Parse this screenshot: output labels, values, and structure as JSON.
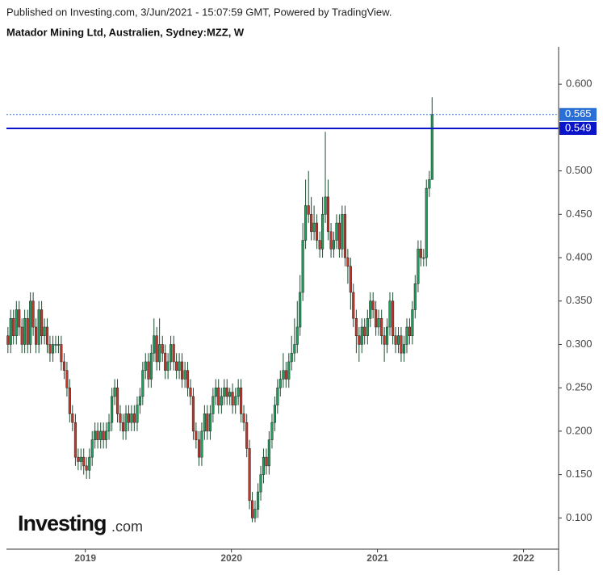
{
  "header": "Published on Investing.com, 3/Jun/2021 - 15:07:59 GMT, Powered by TradingView.",
  "watermark": {
    "brand": "Investing",
    "suffix": ".com"
  },
  "chart_data": {
    "type": "candlestick",
    "title": "Matador Mining Ltd, Australien, Sydney:MZZ, W",
    "up_color": "#1f9e5c",
    "down_color": "#c0392b",
    "xlim": [
      2018.46,
      2022.24
    ],
    "xticks": [
      2019,
      2020,
      2021,
      2022
    ],
    "ylim": [
      0.064,
      0.643
    ],
    "yticks": [
      {
        "value": 0.1,
        "label": "0.100"
      },
      {
        "value": 0.15,
        "label": "0.150"
      },
      {
        "value": 0.2,
        "label": "0.200"
      },
      {
        "value": 0.25,
        "label": "0.250"
      },
      {
        "value": 0.3,
        "label": "0.300"
      },
      {
        "value": 0.35,
        "label": "0.350"
      },
      {
        "value": 0.4,
        "label": "0.400"
      },
      {
        "value": 0.45,
        "label": "0.450"
      },
      {
        "value": 0.5,
        "label": "0.500"
      },
      {
        "value": 0.55,
        "label": "0.550"
      },
      {
        "value": 0.6,
        "label": "0.600"
      }
    ],
    "price_lines": [
      {
        "value": 0.565,
        "color": "#2a6fd6",
        "style": "dotted"
      },
      {
        "value": 0.549,
        "color": "#0a14c8",
        "style": "solid"
      }
    ],
    "x": [
      2018.47,
      2018.489,
      2018.508,
      2018.528,
      2018.547,
      2018.566,
      2018.585,
      2018.605,
      2018.624,
      2018.643,
      2018.662,
      2018.682,
      2018.701,
      2018.72,
      2018.739,
      2018.758,
      2018.778,
      2018.797,
      2018.816,
      2018.835,
      2018.855,
      2018.874,
      2018.893,
      2018.912,
      2018.932,
      2018.951,
      2018.97,
      2018.989,
      2019.008,
      2019.028,
      2019.047,
      2019.066,
      2019.085,
      2019.105,
      2019.124,
      2019.143,
      2019.162,
      2019.182,
      2019.201,
      2019.22,
      2019.239,
      2019.258,
      2019.278,
      2019.297,
      2019.316,
      2019.335,
      2019.355,
      2019.374,
      2019.393,
      2019.412,
      2019.432,
      2019.451,
      2019.47,
      2019.489,
      2019.508,
      2019.528,
      2019.547,
      2019.566,
      2019.585,
      2019.605,
      2019.624,
      2019.643,
      2019.662,
      2019.682,
      2019.701,
      2019.72,
      2019.739,
      2019.758,
      2019.778,
      2019.797,
      2019.816,
      2019.835,
      2019.855,
      2019.874,
      2019.893,
      2019.912,
      2019.932,
      2019.951,
      2019.97,
      2019.989,
      2020.008,
      2020.028,
      2020.047,
      2020.066,
      2020.085,
      2020.105,
      2020.124,
      2020.143,
      2020.162,
      2020.182,
      2020.201,
      2020.22,
      2020.239,
      2020.258,
      2020.278,
      2020.297,
      2020.316,
      2020.335,
      2020.355,
      2020.374,
      2020.393,
      2020.412,
      2020.432,
      2020.451,
      2020.47,
      2020.489,
      2020.508,
      2020.528,
      2020.547,
      2020.566,
      2020.585,
      2020.605,
      2020.624,
      2020.643,
      2020.662,
      2020.682,
      2020.701,
      2020.72,
      2020.739,
      2020.758,
      2020.778,
      2020.797,
      2020.816,
      2020.835,
      2020.855,
      2020.874,
      2020.893,
      2020.912,
      2020.932,
      2020.951,
      2020.97,
      2020.989,
      2021.008,
      2021.028,
      2021.047,
      2021.066,
      2021.085,
      2021.105,
      2021.124,
      2021.143,
      2021.162,
      2021.182,
      2021.201,
      2021.22,
      2021.239,
      2021.258,
      2021.278,
      2021.297,
      2021.316,
      2021.335,
      2021.355,
      2021.374
    ],
    "open": [
      0.31,
      0.3,
      0.33,
      0.31,
      0.34,
      0.32,
      0.3,
      0.33,
      0.3,
      0.35,
      0.32,
      0.3,
      0.34,
      0.31,
      0.32,
      0.3,
      0.29,
      0.3,
      0.3,
      0.3,
      0.28,
      0.27,
      0.25,
      0.22,
      0.21,
      0.17,
      0.165,
      0.17,
      0.16,
      0.155,
      0.17,
      0.19,
      0.2,
      0.19,
      0.2,
      0.19,
      0.2,
      0.21,
      0.24,
      0.25,
      0.22,
      0.21,
      0.2,
      0.22,
      0.21,
      0.22,
      0.21,
      0.23,
      0.24,
      0.27,
      0.28,
      0.26,
      0.29,
      0.31,
      0.28,
      0.3,
      0.29,
      0.27,
      0.28,
      0.3,
      0.28,
      0.27,
      0.28,
      0.26,
      0.27,
      0.25,
      0.24,
      0.2,
      0.19,
      0.17,
      0.2,
      0.22,
      0.2,
      0.22,
      0.24,
      0.25,
      0.23,
      0.24,
      0.25,
      0.24,
      0.245,
      0.23,
      0.24,
      0.25,
      0.22,
      0.21,
      0.18,
      0.12,
      0.1,
      0.11,
      0.13,
      0.15,
      0.17,
      0.16,
      0.19,
      0.21,
      0.23,
      0.25,
      0.26,
      0.27,
      0.26,
      0.28,
      0.29,
      0.3,
      0.32,
      0.36,
      0.42,
      0.46,
      0.45,
      0.43,
      0.44,
      0.42,
      0.41,
      0.45,
      0.47,
      0.43,
      0.41,
      0.42,
      0.44,
      0.41,
      0.45,
      0.4,
      0.39,
      0.36,
      0.33,
      0.31,
      0.3,
      0.32,
      0.31,
      0.33,
      0.35,
      0.34,
      0.32,
      0.33,
      0.31,
      0.3,
      0.32,
      0.35,
      0.31,
      0.3,
      0.31,
      0.29,
      0.3,
      0.32,
      0.31,
      0.34,
      0.37,
      0.41,
      0.4,
      0.4,
      0.48,
      0.49
    ],
    "high": [
      0.32,
      0.34,
      0.34,
      0.35,
      0.35,
      0.33,
      0.34,
      0.34,
      0.36,
      0.36,
      0.33,
      0.35,
      0.35,
      0.33,
      0.33,
      0.31,
      0.31,
      0.31,
      0.31,
      0.31,
      0.29,
      0.28,
      0.26,
      0.23,
      0.22,
      0.18,
      0.18,
      0.18,
      0.17,
      0.18,
      0.2,
      0.21,
      0.21,
      0.21,
      0.21,
      0.21,
      0.22,
      0.25,
      0.26,
      0.26,
      0.23,
      0.22,
      0.23,
      0.23,
      0.23,
      0.23,
      0.24,
      0.25,
      0.28,
      0.29,
      0.29,
      0.3,
      0.33,
      0.32,
      0.33,
      0.31,
      0.3,
      0.29,
      0.31,
      0.31,
      0.29,
      0.29,
      0.29,
      0.28,
      0.28,
      0.26,
      0.25,
      0.21,
      0.2,
      0.21,
      0.23,
      0.23,
      0.23,
      0.25,
      0.26,
      0.26,
      0.25,
      0.26,
      0.26,
      0.25,
      0.255,
      0.25,
      0.26,
      0.26,
      0.23,
      0.22,
      0.19,
      0.13,
      0.12,
      0.14,
      0.16,
      0.18,
      0.18,
      0.2,
      0.22,
      0.24,
      0.26,
      0.27,
      0.29,
      0.28,
      0.29,
      0.31,
      0.33,
      0.35,
      0.38,
      0.44,
      0.49,
      0.5,
      0.47,
      0.46,
      0.45,
      0.43,
      0.47,
      0.545,
      0.49,
      0.44,
      0.43,
      0.45,
      0.45,
      0.46,
      0.46,
      0.41,
      0.4,
      0.37,
      0.34,
      0.32,
      0.33,
      0.33,
      0.34,
      0.36,
      0.36,
      0.35,
      0.34,
      0.34,
      0.32,
      0.33,
      0.36,
      0.36,
      0.32,
      0.32,
      0.32,
      0.31,
      0.33,
      0.33,
      0.35,
      0.38,
      0.42,
      0.42,
      0.41,
      0.49,
      0.5,
      0.585
    ],
    "low": [
      0.29,
      0.29,
      0.3,
      0.3,
      0.31,
      0.29,
      0.29,
      0.29,
      0.29,
      0.31,
      0.29,
      0.29,
      0.3,
      0.3,
      0.29,
      0.28,
      0.28,
      0.29,
      0.29,
      0.27,
      0.26,
      0.24,
      0.21,
      0.2,
      0.16,
      0.155,
      0.155,
      0.15,
      0.145,
      0.145,
      0.16,
      0.18,
      0.18,
      0.18,
      0.18,
      0.18,
      0.19,
      0.2,
      0.23,
      0.21,
      0.2,
      0.19,
      0.19,
      0.2,
      0.2,
      0.2,
      0.2,
      0.22,
      0.23,
      0.26,
      0.25,
      0.25,
      0.28,
      0.27,
      0.27,
      0.28,
      0.26,
      0.26,
      0.27,
      0.27,
      0.26,
      0.26,
      0.25,
      0.25,
      0.24,
      0.23,
      0.19,
      0.18,
      0.16,
      0.16,
      0.19,
      0.19,
      0.19,
      0.21,
      0.23,
      0.22,
      0.22,
      0.23,
      0.23,
      0.23,
      0.22,
      0.22,
      0.23,
      0.21,
      0.2,
      0.17,
      0.11,
      0.095,
      0.095,
      0.1,
      0.12,
      0.14,
      0.15,
      0.15,
      0.18,
      0.2,
      0.22,
      0.24,
      0.25,
      0.25,
      0.25,
      0.27,
      0.28,
      0.29,
      0.31,
      0.35,
      0.41,
      0.44,
      0.42,
      0.42,
      0.41,
      0.4,
      0.4,
      0.44,
      0.42,
      0.4,
      0.4,
      0.41,
      0.4,
      0.4,
      0.39,
      0.37,
      0.34,
      0.32,
      0.29,
      0.28,
      0.29,
      0.3,
      0.3,
      0.32,
      0.33,
      0.31,
      0.31,
      0.3,
      0.28,
      0.29,
      0.31,
      0.3,
      0.29,
      0.29,
      0.28,
      0.28,
      0.29,
      0.3,
      0.3,
      0.33,
      0.36,
      0.39,
      0.39,
      0.39,
      0.47,
      0.49
    ],
    "close": [
      0.3,
      0.33,
      0.31,
      0.34,
      0.32,
      0.3,
      0.33,
      0.3,
      0.35,
      0.32,
      0.3,
      0.34,
      0.31,
      0.32,
      0.3,
      0.29,
      0.3,
      0.3,
      0.3,
      0.28,
      0.27,
      0.25,
      0.22,
      0.21,
      0.17,
      0.165,
      0.17,
      0.16,
      0.155,
      0.17,
      0.19,
      0.2,
      0.19,
      0.2,
      0.19,
      0.2,
      0.21,
      0.24,
      0.25,
      0.22,
      0.21,
      0.2,
      0.22,
      0.21,
      0.22,
      0.21,
      0.23,
      0.24,
      0.27,
      0.28,
      0.26,
      0.29,
      0.31,
      0.28,
      0.3,
      0.29,
      0.27,
      0.28,
      0.3,
      0.28,
      0.27,
      0.28,
      0.26,
      0.27,
      0.25,
      0.24,
      0.2,
      0.19,
      0.17,
      0.2,
      0.22,
      0.2,
      0.22,
      0.24,
      0.25,
      0.23,
      0.24,
      0.25,
      0.24,
      0.245,
      0.23,
      0.24,
      0.25,
      0.22,
      0.21,
      0.18,
      0.12,
      0.1,
      0.11,
      0.13,
      0.15,
      0.17,
      0.16,
      0.19,
      0.21,
      0.23,
      0.25,
      0.26,
      0.27,
      0.26,
      0.28,
      0.29,
      0.3,
      0.32,
      0.36,
      0.42,
      0.46,
      0.45,
      0.43,
      0.44,
      0.42,
      0.41,
      0.45,
      0.47,
      0.43,
      0.41,
      0.42,
      0.44,
      0.41,
      0.45,
      0.4,
      0.39,
      0.36,
      0.33,
      0.31,
      0.3,
      0.32,
      0.31,
      0.33,
      0.35,
      0.34,
      0.32,
      0.33,
      0.31,
      0.3,
      0.32,
      0.35,
      0.31,
      0.3,
      0.31,
      0.29,
      0.3,
      0.32,
      0.31,
      0.34,
      0.37,
      0.41,
      0.4,
      0.4,
      0.48,
      0.49,
      0.565
    ]
  }
}
